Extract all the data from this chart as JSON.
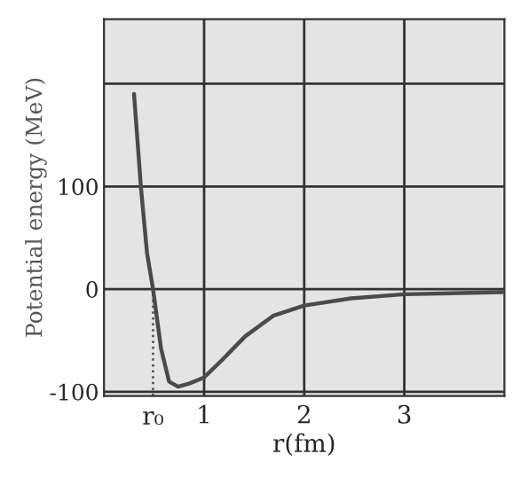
{
  "chart_data": {
    "type": "line",
    "xlabel": "r(fm)",
    "ylabel": "Potential energy (MeV)",
    "x": [
      0.3,
      0.37,
      0.43,
      0.49,
      0.57,
      0.65,
      0.74,
      0.85,
      1.0,
      1.18,
      1.41,
      1.69,
      2.0,
      2.47,
      3.0,
      3.98
    ],
    "series": [
      {
        "color": "#4a4a4a",
        "values": [
          190,
          98,
          35,
          0,
          -58,
          -90,
          -95,
          -92,
          -86,
          -69,
          -46,
          -26,
          -16,
          -9,
          -5,
          -3
        ]
      }
    ],
    "xlim": [
      0,
      4
    ],
    "ylim": [
      -104,
      263
    ],
    "xticks": [
      1,
      2,
      3
    ],
    "yticks": [
      -100,
      0,
      100,
      {
        "value": 200,
        "label": null
      }
    ],
    "ref_lines": [
      {
        "axis": "x",
        "value": 0.49,
        "line_style": "dotted",
        "color": "#4a4a4a",
        "label": "r₀"
      }
    ],
    "grid": true,
    "line_style": "solid",
    "marker": "none"
  }
}
